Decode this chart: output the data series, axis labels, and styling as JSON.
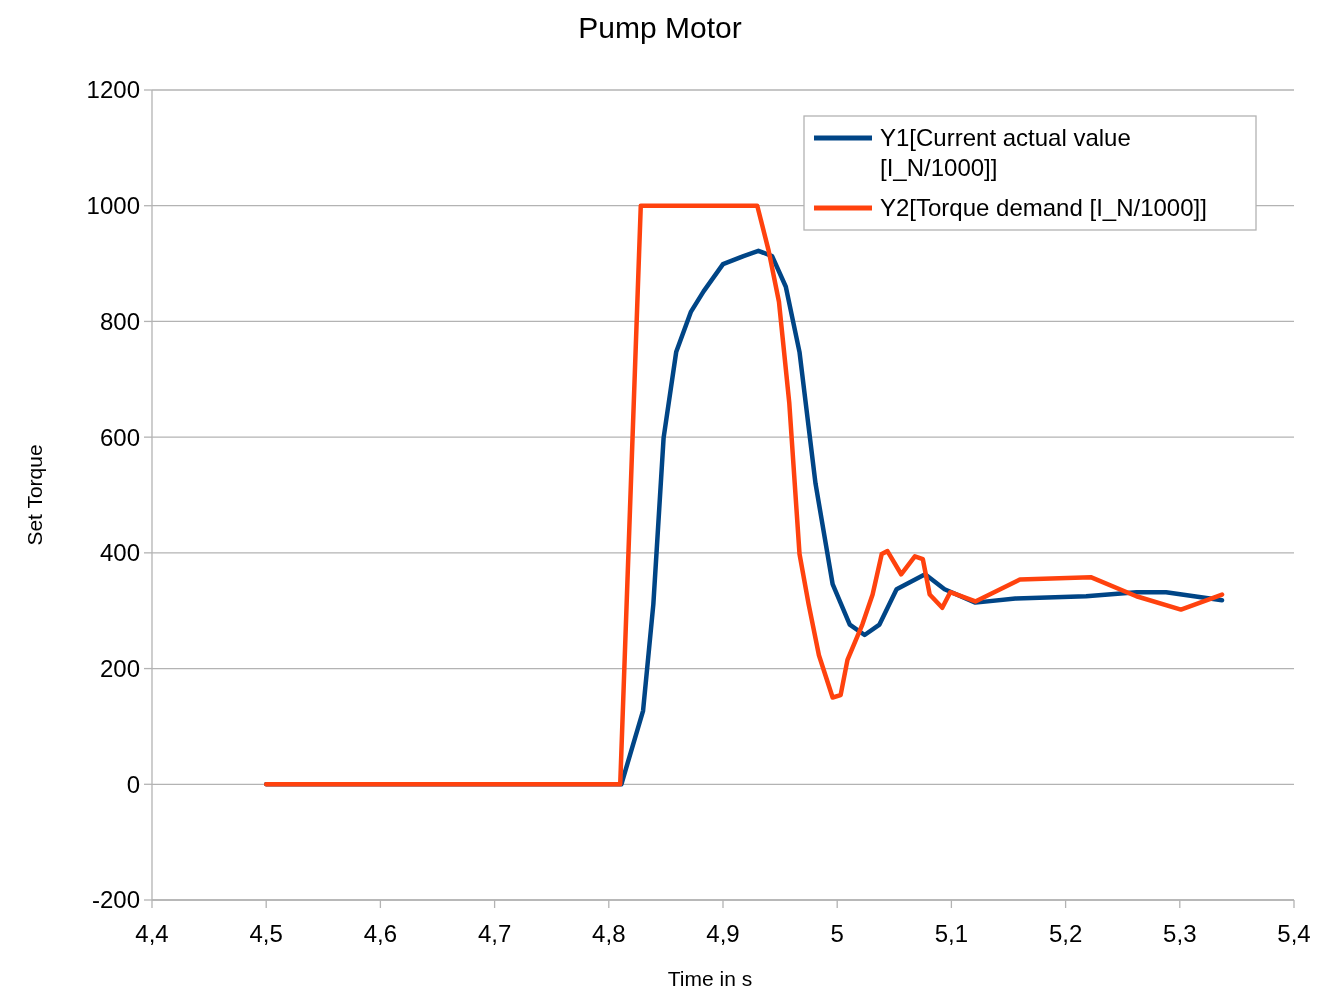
{
  "chart_data": {
    "type": "line",
    "title": "Pump Motor",
    "xlabel": "Time in s",
    "ylabel": "Set Torque",
    "xlim": [
      4.4,
      5.4
    ],
    "xticks": [
      {
        "value": 4.4,
        "label": "4,4"
      },
      {
        "value": 4.5,
        "label": "4,5"
      },
      {
        "value": 4.6,
        "label": "4,6"
      },
      {
        "value": 4.7,
        "label": "4,7"
      },
      {
        "value": 4.8,
        "label": "4,8"
      },
      {
        "value": 4.9,
        "label": "4,9"
      },
      5,
      {
        "value": 5.1,
        "label": "5,1"
      },
      {
        "value": 5.2,
        "label": "5,2"
      },
      {
        "value": 5.3,
        "label": "5,3"
      },
      {
        "value": 5.4,
        "label": "5,4"
      }
    ],
    "ylim": [
      -200,
      1200
    ],
    "yticks": [
      -200,
      0,
      200,
      400,
      600,
      800,
      1000,
      1200
    ],
    "grid": "y",
    "legend": "top right",
    "marker": "none",
    "line_style": "solid",
    "series": [
      {
        "name": "Y1[Current actual value [I_N/1000]]",
        "color": "#004586",
        "x": [
          4.5,
          4.811,
          4.83,
          4.839,
          4.848,
          4.859,
          4.872,
          4.883,
          4.9,
          4.918,
          4.931,
          4.943,
          4.955,
          4.967,
          4.981,
          4.996,
          5.011,
          5.024,
          5.037,
          5.052,
          5.077,
          5.094,
          5.121,
          5.156,
          5.218,
          5.262,
          5.288,
          5.337
        ],
        "values": [
          0,
          0,
          127,
          311,
          599,
          747,
          817,
          852,
          899,
          913,
          922,
          913,
          860,
          747,
          520,
          346,
          276,
          258,
          276,
          337,
          363,
          337,
          314,
          321,
          325,
          332,
          332,
          318
        ]
      },
      {
        "name": "Y2[Torque demand [I_N/1000]]",
        "color": "#ff420e",
        "x": [
          4.5,
          4.81,
          4.828,
          4.93,
          4.94,
          4.949,
          4.958,
          4.967,
          4.975,
          4.984,
          4.996,
          5.003,
          5.009,
          5.022,
          5.031,
          5.039,
          5.044,
          5.056,
          5.068,
          5.075,
          5.081,
          5.092,
          5.099,
          5.121,
          5.16,
          5.222,
          5.262,
          5.301,
          5.337
        ],
        "values": [
          0,
          0,
          1000,
          1000,
          922,
          834,
          660,
          398,
          311,
          223,
          150,
          154,
          215,
          276,
          328,
          398,
          403,
          363,
          394,
          389,
          328,
          305,
          332,
          316,
          354,
          358,
          325,
          302,
          328
        ]
      }
    ]
  }
}
